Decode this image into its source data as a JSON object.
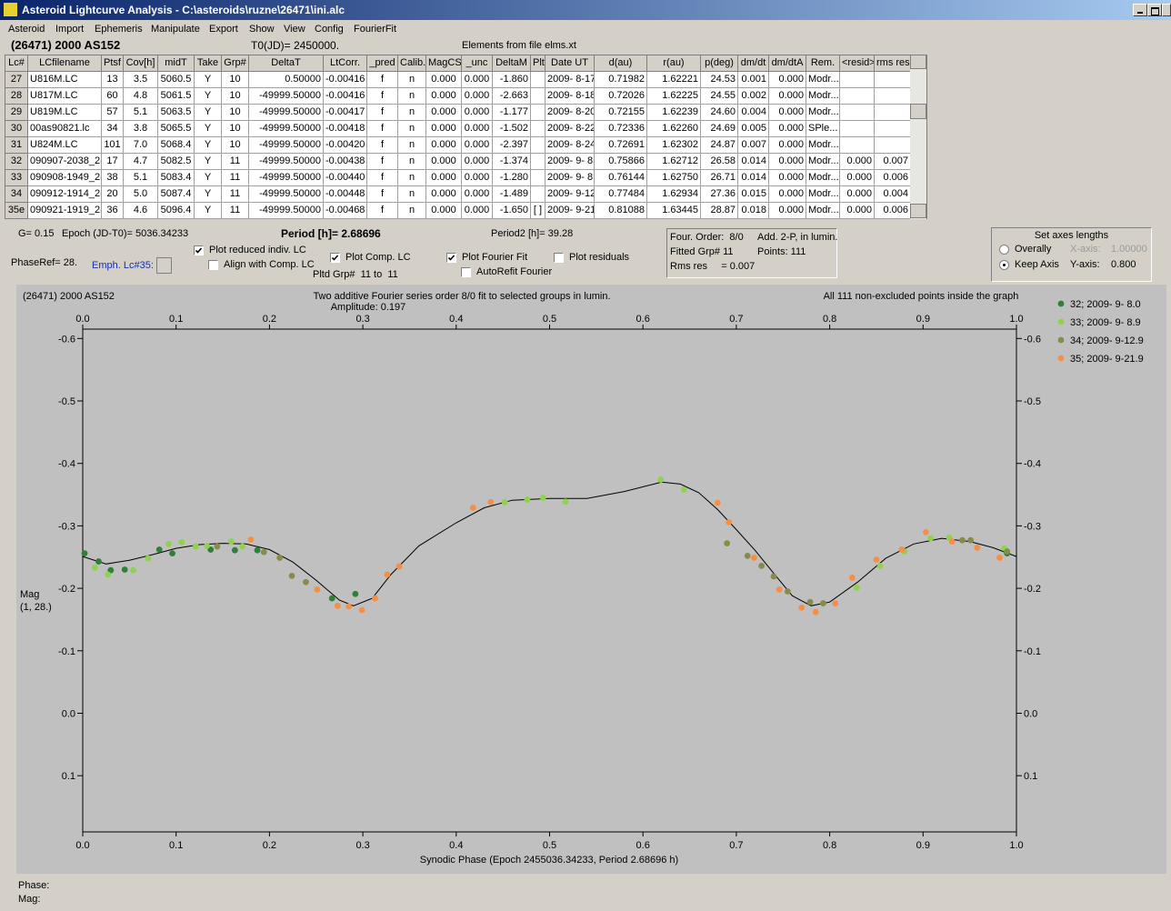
{
  "window": {
    "title": "Asteroid Lightcurve Analysis - C:\\asteroids\\ruzne\\26471\\ini.alc"
  },
  "menu": [
    "Asteroid",
    "Import",
    "Ephemeris",
    "Manipulate",
    "Export",
    "Show",
    "View",
    "Config",
    "FourierFit"
  ],
  "header": {
    "object": "(26471) 2000 AS152",
    "t0": "T0(JD)= 2450000.",
    "elements": "Elements from file elms.xt"
  },
  "table": {
    "columns": [
      "Lc#",
      "LCfilename",
      "Ptsf",
      "Cov[h]",
      "midT",
      "Take",
      "Grp#",
      "DeltaT",
      "LtCorr.",
      "_pred",
      "Calib.",
      "MagCS",
      "_unc",
      "DeltaM",
      "Plt",
      "Date UT",
      "d(au)",
      "r(au)",
      "p(deg)",
      "dm/dt",
      "dm/dtA",
      "Rem.",
      "<resid>",
      "rms res"
    ],
    "rows": [
      [
        "27",
        "U816M.LC",
        "13",
        "3.5",
        "5060.5",
        "Y",
        "10",
        "0.50000",
        "-0.00416",
        "f",
        "n",
        "0.000",
        "0.000",
        "-1.860",
        null,
        "2009- 8-17.0",
        "0.71982",
        "1.62221",
        "24.53",
        "0.001",
        "0.000",
        "Modr...",
        null,
        null
      ],
      [
        "28",
        "U817M.LC",
        "60",
        "4.8",
        "5061.5",
        "Y",
        "10",
        "-49999.50000",
        "-0.00416",
        "f",
        "n",
        "0.000",
        "0.000",
        "-2.663",
        null,
        "2009- 8-18.0",
        "0.72026",
        "1.62225",
        "24.55",
        "0.002",
        "0.000",
        "Modr...",
        null,
        null
      ],
      [
        "29",
        "U819M.LC",
        "57",
        "5.1",
        "5063.5",
        "Y",
        "10",
        "-49999.50000",
        "-0.00417",
        "f",
        "n",
        "0.000",
        "0.000",
        "-1.177",
        null,
        "2009- 8-20.0",
        "0.72155",
        "1.62239",
        "24.60",
        "0.004",
        "0.000",
        "Modr...",
        null,
        null
      ],
      [
        "30",
        "00as90821.lc",
        "34",
        "3.8",
        "5065.5",
        "Y",
        "10",
        "-49999.50000",
        "-0.00418",
        "f",
        "n",
        "0.000",
        "0.000",
        "-1.502",
        null,
        "2009- 8-22.0",
        "0.72336",
        "1.62260",
        "24.69",
        "0.005",
        "0.000",
        "SPle...",
        null,
        null
      ],
      [
        "31",
        "U824M.LC",
        "101",
        "7.0",
        "5068.4",
        "Y",
        "10",
        "-49999.50000",
        "-0.00420",
        "f",
        "n",
        "0.000",
        "0.000",
        "-2.397",
        null,
        "2009- 8-24.9",
        "0.72691",
        "1.62302",
        "24.87",
        "0.007",
        "0.000",
        "Modr...",
        null,
        null
      ],
      [
        "32",
        "090907-2038_2(",
        "17",
        "4.7",
        "5082.5",
        "Y",
        "11",
        "-49999.50000",
        "-0.00438",
        "f",
        "n",
        "0.000",
        "0.000",
        "-1.374",
        null,
        "2009- 9- 8.0",
        "0.75866",
        "1.62712",
        "26.58",
        "0.014",
        "0.000",
        "Modr...",
        "0.000",
        "0.007"
      ],
      [
        "33",
        "090908-1949_2(",
        "38",
        "5.1",
        "5083.4",
        "Y",
        "11",
        "-49999.50000",
        "-0.00440",
        "f",
        "n",
        "0.000",
        "0.000",
        "-1.280",
        null,
        "2009- 9- 8.9",
        "0.76144",
        "1.62750",
        "26.71",
        "0.014",
        "0.000",
        "Modr...",
        "0.000",
        "0.006"
      ],
      [
        "34",
        "090912-1914_2(",
        "20",
        "5.0",
        "5087.4",
        "Y",
        "11",
        "-49999.50000",
        "-0.00448",
        "f",
        "n",
        "0.000",
        "0.000",
        "-1.489",
        null,
        "2009- 9-12.9",
        "0.77484",
        "1.62934",
        "27.36",
        "0.015",
        "0.000",
        "Modr...",
        "0.000",
        "0.004"
      ],
      [
        "35e",
        "090921-1919_2(",
        "36",
        "4.6",
        "5096.4",
        "Y",
        "11",
        "-49999.50000",
        "-0.00468",
        "f",
        "n",
        "0.000",
        "0.000",
        "-1.650",
        "[ ]",
        "2009- 9-21.9",
        "0.81088",
        "1.63445",
        "28.87",
        "0.018",
        "0.000",
        "Modr...",
        "0.000",
        "0.006"
      ]
    ]
  },
  "params": {
    "g": "G= 0.15",
    "epoch": "Epoch (JD-T0)= 5036.34233",
    "period": "Period [h]= 2.68696",
    "period2": "Period2 [h]= 39.28",
    "phase_ref": "PhaseRef= 28.",
    "emph": "Emph. Lc#35:",
    "pltd_grp": "Pltd Grp#  11 to  11"
  },
  "checkboxes": [
    {
      "label": "Plot reduced indiv. LC",
      "checked": true
    },
    {
      "label": "Align with Comp. LC",
      "checked": false
    },
    {
      "label": "Plot Comp. LC",
      "checked": true
    },
    {
      "label": "Plot Fourier Fit",
      "checked": true
    },
    {
      "label": "AutoRefit Fourier",
      "checked": false
    },
    {
      "label": "Plot residuals",
      "checked": false
    }
  ],
  "fit_info": [
    "Four. Order:  8/0",
    "Add. 2-P, in lumin.",
    "Fitted Grp# 11",
    "Points: 111",
    "Rms res     = 0.007"
  ],
  "axes_box": {
    "title": "Set axes lengths",
    "radios": [
      {
        "label": "Overally",
        "selected": false
      },
      {
        "label": "Keep Axis",
        "selected": true
      }
    ],
    "x_label": "X-axis:",
    "x_value": "1.00000",
    "y_label": "Y-axis:",
    "y_value": "0.800"
  },
  "plot": {
    "type": "scatter",
    "title_left": "(26471) 2000 AS152",
    "title": "Two additive Fourier series order 8/0 fit to selected groups in lumin.",
    "subtitle": "Amplitude: 0.197",
    "note": "All 111 non-excluded points inside the graph",
    "y_label": [
      "Mag",
      "(1, 28.)"
    ],
    "x_label": "Synodic Phase (Epoch 2455036.34233, Period 2.68696 h)",
    "xlim": [
      0,
      1
    ],
    "ylim": [
      -0.615,
      0.19
    ],
    "y_inverted": true,
    "xticks": [
      {
        "value": 0,
        "label": "0.0"
      },
      0.1,
      0.2,
      0.3,
      0.4,
      0.5,
      0.6,
      0.7,
      0.8,
      0.9,
      {
        "value": 1,
        "label": "1.0"
      }
    ],
    "yticks": [
      -0.6,
      -0.5,
      -0.4,
      -0.3,
      -0.2,
      -0.1,
      {
        "value": 0,
        "label": "0.0"
      },
      0.1
    ],
    "fit": {
      "color": "#000000",
      "x": [
        0,
        0.025,
        0.05,
        0.075,
        0.1,
        0.125,
        0.15,
        0.175,
        0.2,
        0.225,
        0.25,
        0.275,
        0.29,
        0.31,
        0.33,
        0.36,
        0.4,
        0.43,
        0.46,
        0.5,
        0.54,
        0.58,
        0.62,
        0.64,
        0.66,
        0.68,
        0.7,
        0.72,
        0.74,
        0.76,
        0.78,
        0.8,
        0.83,
        0.86,
        0.89,
        0.92,
        0.95,
        0.975,
        1
      ],
      "values": [
        -0.251,
        -0.239,
        -0.245,
        -0.254,
        -0.264,
        -0.27,
        -0.272,
        -0.271,
        -0.262,
        -0.242,
        -0.213,
        -0.181,
        -0.172,
        -0.184,
        -0.222,
        -0.268,
        -0.305,
        -0.329,
        -0.341,
        -0.344,
        -0.344,
        -0.355,
        -0.37,
        -0.367,
        -0.353,
        -0.326,
        -0.294,
        -0.261,
        -0.224,
        -0.188,
        -0.172,
        -0.178,
        -0.21,
        -0.248,
        -0.271,
        -0.28,
        -0.275,
        -0.265,
        -0.251
      ]
    },
    "series": [
      {
        "name": "32; 2009- 9- 8.0",
        "color": "#2f7f3a",
        "x": [
          0.002,
          0.017,
          0.03,
          0.045,
          0.082,
          0.096,
          0.137,
          0.163,
          0.187,
          0.267,
          0.292,
          0.99
        ],
        "values": [
          -0.256,
          -0.243,
          -0.229,
          -0.23,
          -0.262,
          -0.256,
          -0.262,
          -0.261,
          -0.261,
          -0.184,
          -0.191,
          -0.256
        ]
      },
      {
        "name": "33; 2009- 9- 8.9",
        "color": "#8fd24f",
        "x": [
          0.013,
          0.027,
          0.054,
          0.07,
          0.092,
          0.106,
          0.121,
          0.133,
          0.159,
          0.171,
          0.452,
          0.476,
          0.493,
          0.517,
          0.619,
          0.644,
          0.829,
          0.854,
          0.88,
          0.908,
          0.928,
          0.987
        ],
        "values": [
          -0.233,
          -0.222,
          -0.229,
          -0.248,
          -0.271,
          -0.274,
          -0.267,
          -0.268,
          -0.275,
          -0.267,
          -0.338,
          -0.342,
          -0.345,
          -0.339,
          -0.374,
          -0.358,
          -0.201,
          -0.236,
          -0.259,
          -0.28,
          -0.281,
          -0.264
        ]
      },
      {
        "name": "34; 2009- 9-12.9",
        "color": "#8a8a4c",
        "x": [
          0.144,
          0.194,
          0.211,
          0.224,
          0.239,
          0.69,
          0.712,
          0.727,
          0.74,
          0.755,
          0.779,
          0.793,
          0.942,
          0.951,
          0.99
        ],
        "values": [
          -0.267,
          -0.258,
          -0.249,
          -0.22,
          -0.21,
          -0.272,
          -0.252,
          -0.236,
          -0.219,
          -0.195,
          -0.178,
          -0.176,
          -0.277,
          -0.277,
          -0.259
        ]
      },
      {
        "name": "35; 2009- 9-21.9",
        "color": "#f58f48",
        "x": [
          0.18,
          0.251,
          0.273,
          0.285,
          0.299,
          0.313,
          0.326,
          0.339,
          0.418,
          0.437,
          0.68,
          0.692,
          0.719,
          0.746,
          0.77,
          0.785,
          0.806,
          0.824,
          0.85,
          0.877,
          0.903,
          0.931,
          0.958,
          0.982
        ],
        "values": [
          -0.278,
          -0.198,
          -0.172,
          -0.171,
          -0.165,
          -0.184,
          -0.222,
          -0.235,
          -0.329,
          -0.338,
          -0.337,
          -0.306,
          -0.249,
          -0.198,
          -0.169,
          -0.162,
          -0.176,
          -0.217,
          -0.246,
          -0.262,
          -0.29,
          -0.275,
          -0.265,
          -0.249
        ]
      }
    ]
  },
  "status": {
    "phase": "Phase:",
    "mag": "Mag:"
  }
}
